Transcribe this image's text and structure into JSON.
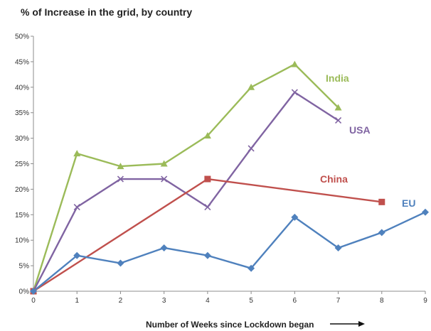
{
  "chart_data": {
    "type": "line",
    "title": "% of Increase in the grid, by country",
    "xlabel": "Number of Weeks since Lockdown began",
    "ylabel": "",
    "xlim": [
      0,
      9
    ],
    "ylim": [
      0,
      50
    ],
    "x_ticks": [
      "0",
      "1",
      "2",
      "3",
      "4",
      "5",
      "6",
      "7",
      "8",
      "9"
    ],
    "y_ticks": [
      "0%",
      "5%",
      "10%",
      "15%",
      "20%",
      "25%",
      "30%",
      "35%",
      "40%",
      "45%",
      "50%"
    ],
    "grid": false,
    "series": [
      {
        "name": "India",
        "color": "#9bbb59",
        "marker": "triangle",
        "x": [
          0,
          1,
          2,
          3,
          4,
          5,
          6,
          7
        ],
        "values": [
          0,
          27,
          24.5,
          25,
          30.5,
          40,
          44.5,
          36
        ]
      },
      {
        "name": "USA",
        "color": "#8064a2",
        "marker": "x",
        "x": [
          0,
          1,
          2,
          3,
          4,
          5,
          6,
          7
        ],
        "values": [
          0,
          16.5,
          22,
          22,
          16.5,
          28,
          39,
          33.5
        ]
      },
      {
        "name": "China",
        "color": "#c0504d",
        "marker": "square",
        "x": [
          0,
          4,
          8
        ],
        "values": [
          0,
          22,
          17.5
        ]
      },
      {
        "name": "EU",
        "color": "#4f81bd",
        "marker": "diamond",
        "x": [
          0,
          1,
          2,
          3,
          4,
          5,
          6,
          7,
          8,
          9
        ],
        "values": [
          0,
          7,
          5.5,
          8.5,
          7,
          4.5,
          14.5,
          8.5,
          11.5,
          15.5
        ]
      }
    ]
  }
}
